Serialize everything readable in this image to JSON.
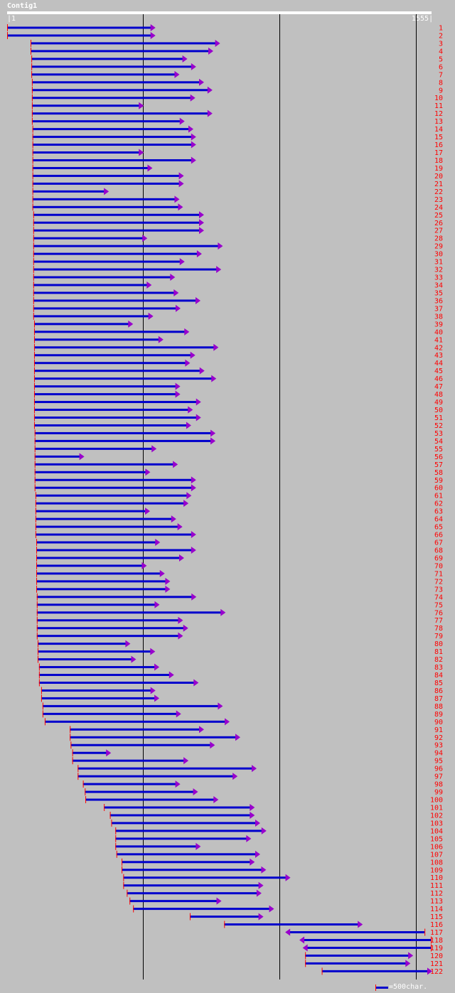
{
  "contig": {
    "title": "Contig1",
    "ruler_start": "1",
    "ruler_end": "1555",
    "length": 1555
  },
  "legend": {
    "label": "=500char."
  },
  "colors": {
    "background": "#c0c0c0",
    "read_bar": "#0000cc",
    "read_start": "#ff0000",
    "arrow_head": "#9900cc",
    "label": "#ff0000",
    "gridline": "#000000"
  },
  "chart_data": {
    "type": "alignment",
    "gridlines_at": [
      500,
      1000,
      1500
    ],
    "reads": [
      {
        "id": "1",
        "start": 1,
        "end": 540,
        "dir": "f"
      },
      {
        "id": "2",
        "start": 1,
        "end": 540,
        "dir": "f"
      },
      {
        "id": "3",
        "start": 87,
        "end": 777,
        "dir": "f"
      },
      {
        "id": "4",
        "start": 87,
        "end": 752,
        "dir": "f"
      },
      {
        "id": "5",
        "start": 90,
        "end": 657,
        "dir": "f"
      },
      {
        "id": "6",
        "start": 90,
        "end": 689,
        "dir": "f"
      },
      {
        "id": "7",
        "start": 90,
        "end": 628,
        "dir": "f"
      },
      {
        "id": "8",
        "start": 92,
        "end": 718,
        "dir": "f"
      },
      {
        "id": "9",
        "start": 92,
        "end": 749,
        "dir": "f"
      },
      {
        "id": "10",
        "start": 92,
        "end": 686,
        "dir": "f"
      },
      {
        "id": "11",
        "start": 92,
        "end": 497,
        "dir": "f"
      },
      {
        "id": "12",
        "start": 92,
        "end": 749,
        "dir": "f"
      },
      {
        "id": "13",
        "start": 92,
        "end": 647,
        "dir": "f"
      },
      {
        "id": "14",
        "start": 94,
        "end": 679,
        "dir": "f"
      },
      {
        "id": "15",
        "start": 94,
        "end": 689,
        "dir": "f"
      },
      {
        "id": "16",
        "start": 94,
        "end": 689,
        "dir": "f"
      },
      {
        "id": "17",
        "start": 94,
        "end": 497,
        "dir": "f"
      },
      {
        "id": "18",
        "start": 94,
        "end": 689,
        "dir": "f"
      },
      {
        "id": "19",
        "start": 94,
        "end": 529,
        "dir": "f"
      },
      {
        "id": "20",
        "start": 94,
        "end": 644,
        "dir": "f"
      },
      {
        "id": "21",
        "start": 94,
        "end": 644,
        "dir": "f"
      },
      {
        "id": "22",
        "start": 94,
        "end": 369,
        "dir": "f"
      },
      {
        "id": "23",
        "start": 94,
        "end": 628,
        "dir": "f"
      },
      {
        "id": "24",
        "start": 94,
        "end": 641,
        "dir": "f"
      },
      {
        "id": "25",
        "start": 97,
        "end": 718,
        "dir": "f"
      },
      {
        "id": "26",
        "start": 97,
        "end": 718,
        "dir": "f"
      },
      {
        "id": "27",
        "start": 97,
        "end": 718,
        "dir": "f"
      },
      {
        "id": "28",
        "start": 97,
        "end": 510,
        "dir": "f"
      },
      {
        "id": "29",
        "start": 97,
        "end": 787,
        "dir": "f"
      },
      {
        "id": "30",
        "start": 97,
        "end": 710,
        "dir": "f"
      },
      {
        "id": "31",
        "start": 97,
        "end": 647,
        "dir": "f"
      },
      {
        "id": "32",
        "start": 97,
        "end": 781,
        "dir": "f"
      },
      {
        "id": "33",
        "start": 97,
        "end": 612,
        "dir": "f"
      },
      {
        "id": "34",
        "start": 97,
        "end": 526,
        "dir": "f"
      },
      {
        "id": "35",
        "start": 97,
        "end": 625,
        "dir": "f"
      },
      {
        "id": "36",
        "start": 97,
        "end": 705,
        "dir": "f"
      },
      {
        "id": "37",
        "start": 97,
        "end": 632,
        "dir": "f"
      },
      {
        "id": "38",
        "start": 97,
        "end": 532,
        "dir": "f"
      },
      {
        "id": "39",
        "start": 100,
        "end": 458,
        "dir": "f"
      },
      {
        "id": "40",
        "start": 100,
        "end": 664,
        "dir": "f"
      },
      {
        "id": "41",
        "start": 100,
        "end": 569,
        "dir": "f"
      },
      {
        "id": "42",
        "start": 100,
        "end": 771,
        "dir": "f"
      },
      {
        "id": "43",
        "start": 100,
        "end": 686,
        "dir": "f"
      },
      {
        "id": "44",
        "start": 100,
        "end": 667,
        "dir": "f"
      },
      {
        "id": "45",
        "start": 100,
        "end": 720,
        "dir": "f"
      },
      {
        "id": "46",
        "start": 100,
        "end": 763,
        "dir": "f"
      },
      {
        "id": "47",
        "start": 100,
        "end": 631,
        "dir": "f"
      },
      {
        "id": "48",
        "start": 100,
        "end": 631,
        "dir": "f"
      },
      {
        "id": "49",
        "start": 100,
        "end": 707,
        "dir": "f"
      },
      {
        "id": "50",
        "start": 100,
        "end": 677,
        "dir": "f"
      },
      {
        "id": "51",
        "start": 100,
        "end": 707,
        "dir": "f"
      },
      {
        "id": "52",
        "start": 100,
        "end": 671,
        "dir": "f"
      },
      {
        "id": "53",
        "start": 102,
        "end": 760,
        "dir": "f"
      },
      {
        "id": "54",
        "start": 102,
        "end": 760,
        "dir": "f"
      },
      {
        "id": "55",
        "start": 102,
        "end": 544,
        "dir": "f"
      },
      {
        "id": "56",
        "start": 102,
        "end": 279,
        "dir": "f"
      },
      {
        "id": "57",
        "start": 102,
        "end": 622,
        "dir": "f"
      },
      {
        "id": "58",
        "start": 102,
        "end": 521,
        "dir": "f"
      },
      {
        "id": "59",
        "start": 102,
        "end": 689,
        "dir": "f"
      },
      {
        "id": "60",
        "start": 102,
        "end": 689,
        "dir": "f"
      },
      {
        "id": "61",
        "start": 105,
        "end": 672,
        "dir": "f"
      },
      {
        "id": "62",
        "start": 105,
        "end": 661,
        "dir": "f"
      },
      {
        "id": "63",
        "start": 105,
        "end": 520,
        "dir": "f"
      },
      {
        "id": "64",
        "start": 105,
        "end": 616,
        "dir": "f"
      },
      {
        "id": "65",
        "start": 105,
        "end": 639,
        "dir": "f"
      },
      {
        "id": "66",
        "start": 105,
        "end": 689,
        "dir": "f"
      },
      {
        "id": "67",
        "start": 108,
        "end": 557,
        "dir": "f"
      },
      {
        "id": "68",
        "start": 108,
        "end": 689,
        "dir": "f"
      },
      {
        "id": "69",
        "start": 108,
        "end": 645,
        "dir": "f"
      },
      {
        "id": "70",
        "start": 108,
        "end": 508,
        "dir": "f"
      },
      {
        "id": "71",
        "start": 108,
        "end": 574,
        "dir": "f"
      },
      {
        "id": "72",
        "start": 108,
        "end": 594,
        "dir": "f"
      },
      {
        "id": "73",
        "start": 108,
        "end": 594,
        "dir": "f"
      },
      {
        "id": "74",
        "start": 110,
        "end": 690,
        "dir": "f"
      },
      {
        "id": "75",
        "start": 110,
        "end": 555,
        "dir": "f"
      },
      {
        "id": "76",
        "start": 110,
        "end": 797,
        "dir": "f"
      },
      {
        "id": "77",
        "start": 110,
        "end": 641,
        "dir": "f"
      },
      {
        "id": "78",
        "start": 110,
        "end": 660,
        "dir": "f"
      },
      {
        "id": "79",
        "start": 110,
        "end": 641,
        "dir": "f"
      },
      {
        "id": "80",
        "start": 113,
        "end": 448,
        "dir": "f"
      },
      {
        "id": "81",
        "start": 113,
        "end": 539,
        "dir": "f"
      },
      {
        "id": "82",
        "start": 113,
        "end": 469,
        "dir": "f"
      },
      {
        "id": "83",
        "start": 118,
        "end": 554,
        "dir": "f"
      },
      {
        "id": "84",
        "start": 118,
        "end": 608,
        "dir": "f"
      },
      {
        "id": "85",
        "start": 118,
        "end": 698,
        "dir": "f"
      },
      {
        "id": "86",
        "start": 126,
        "end": 540,
        "dir": "f"
      },
      {
        "id": "87",
        "start": 126,
        "end": 554,
        "dir": "f"
      },
      {
        "id": "88",
        "start": 131,
        "end": 787,
        "dir": "f"
      },
      {
        "id": "89",
        "start": 131,
        "end": 634,
        "dir": "f"
      },
      {
        "id": "90",
        "start": 139,
        "end": 812,
        "dir": "f"
      },
      {
        "id": "91",
        "start": 231,
        "end": 718,
        "dir": "f"
      },
      {
        "id": "92",
        "start": 231,
        "end": 851,
        "dir": "f"
      },
      {
        "id": "93",
        "start": 234,
        "end": 758,
        "dir": "f"
      },
      {
        "id": "94",
        "start": 240,
        "end": 377,
        "dir": "f"
      },
      {
        "id": "95",
        "start": 240,
        "end": 661,
        "dir": "f"
      },
      {
        "id": "96",
        "start": 260,
        "end": 911,
        "dir": "f"
      },
      {
        "id": "97",
        "start": 260,
        "end": 841,
        "dir": "f"
      },
      {
        "id": "98",
        "start": 279,
        "end": 631,
        "dir": "f"
      },
      {
        "id": "99",
        "start": 286,
        "end": 696,
        "dir": "f"
      },
      {
        "id": "100",
        "start": 288,
        "end": 771,
        "dir": "f"
      },
      {
        "id": "101",
        "start": 356,
        "end": 904,
        "dir": "f"
      },
      {
        "id": "102",
        "start": 378,
        "end": 904,
        "dir": "f"
      },
      {
        "id": "103",
        "start": 383,
        "end": 924,
        "dir": "f"
      },
      {
        "id": "104",
        "start": 398,
        "end": 947,
        "dir": "f"
      },
      {
        "id": "105",
        "start": 398,
        "end": 891,
        "dir": "f"
      },
      {
        "id": "106",
        "start": 398,
        "end": 706,
        "dir": "f"
      },
      {
        "id": "107",
        "start": 402,
        "end": 924,
        "dir": "f"
      },
      {
        "id": "108",
        "start": 421,
        "end": 904,
        "dir": "f"
      },
      {
        "id": "109",
        "start": 421,
        "end": 946,
        "dir": "f"
      },
      {
        "id": "110",
        "start": 427,
        "end": 1035,
        "dir": "f"
      },
      {
        "id": "111",
        "start": 427,
        "end": 936,
        "dir": "f"
      },
      {
        "id": "112",
        "start": 440,
        "end": 929,
        "dir": "f"
      },
      {
        "id": "113",
        "start": 450,
        "end": 782,
        "dir": "f"
      },
      {
        "id": "114",
        "start": 463,
        "end": 975,
        "dir": "f"
      },
      {
        "id": "115",
        "start": 671,
        "end": 936,
        "dir": "f"
      },
      {
        "id": "116",
        "start": 797,
        "end": 1300,
        "dir": "f"
      },
      {
        "id": "117",
        "start": 1026,
        "end": 1532,
        "dir": "r"
      },
      {
        "id": "118",
        "start": 1078,
        "end": 1555,
        "dir": "r"
      },
      {
        "id": "119",
        "start": 1090,
        "end": 1555,
        "dir": "r"
      },
      {
        "id": "120",
        "start": 1094,
        "end": 1485,
        "dir": "f"
      },
      {
        "id": "121",
        "start": 1094,
        "end": 1475,
        "dir": "f"
      },
      {
        "id": "122",
        "start": 1155,
        "end": 1555,
        "dir": "f"
      }
    ]
  }
}
